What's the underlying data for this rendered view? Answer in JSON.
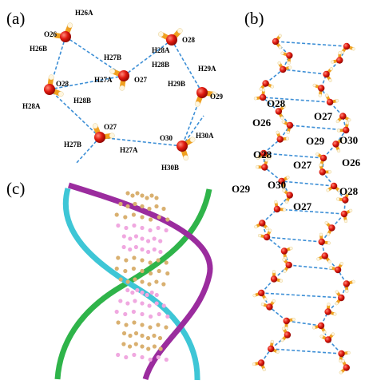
{
  "panels": [
    {
      "label": "(a)",
      "atoms": [
        "H26A",
        "O26",
        "H26B",
        "O28",
        "H28A",
        "H28B",
        "H27B",
        "H27A",
        "O27",
        "H28A",
        "O28",
        "H28B",
        "H29A",
        "H29B",
        "O29",
        "O27",
        "H27B",
        "H27A",
        "O30",
        "H30A",
        "H30B"
      ]
    },
    {
      "label": "(b)",
      "atoms": [
        "O28",
        "O26",
        "O27",
        "O29",
        "O30",
        "O28",
        "O27",
        "O26",
        "O29",
        "O30",
        "O28",
        "O27"
      ]
    },
    {
      "label": "(c)"
    }
  ]
}
